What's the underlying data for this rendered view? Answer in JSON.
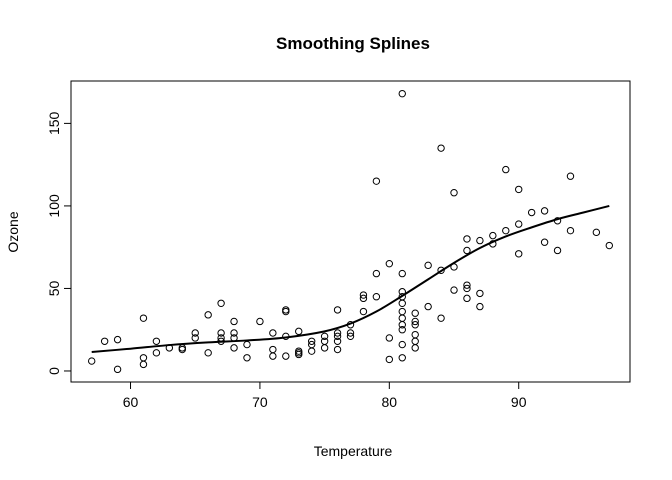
{
  "chart_data": {
    "type": "scatter",
    "title": "Smoothing Splines",
    "xlabel": "Temperature",
    "ylabel": "Ozone",
    "xlim": [
      55.4,
      98.6
    ],
    "ylim": [
      -6.68,
      175.68
    ],
    "xticks": [
      60,
      70,
      80,
      90
    ],
    "yticks": [
      0,
      50,
      100,
      150
    ],
    "grid": false,
    "legend": "none",
    "points": [
      [
        57,
        6
      ],
      [
        58,
        18
      ],
      [
        59,
        1
      ],
      [
        59,
        19
      ],
      [
        61,
        32
      ],
      [
        61,
        8
      ],
      [
        61,
        4
      ],
      [
        62,
        11
      ],
      [
        62,
        18
      ],
      [
        63,
        14
      ],
      [
        64,
        14
      ],
      [
        64,
        13
      ],
      [
        65,
        23
      ],
      [
        65,
        20
      ],
      [
        66,
        34
      ],
      [
        66,
        11
      ],
      [
        67,
        41
      ],
      [
        67,
        23
      ],
      [
        67,
        18
      ],
      [
        67,
        20
      ],
      [
        68,
        30
      ],
      [
        68,
        23
      ],
      [
        68,
        20
      ],
      [
        68,
        14
      ],
      [
        69,
        16
      ],
      [
        69,
        8
      ],
      [
        70,
        30
      ],
      [
        71,
        23
      ],
      [
        71,
        13
      ],
      [
        71,
        9
      ],
      [
        72,
        37
      ],
      [
        72,
        36
      ],
      [
        72,
        21
      ],
      [
        72,
        9
      ],
      [
        73,
        24
      ],
      [
        73,
        12
      ],
      [
        73,
        11
      ],
      [
        73,
        10
      ],
      [
        74,
        18
      ],
      [
        74,
        16
      ],
      [
        74,
        12
      ],
      [
        75,
        14
      ],
      [
        75,
        21
      ],
      [
        75,
        18
      ],
      [
        76,
        37
      ],
      [
        76,
        23
      ],
      [
        76,
        21
      ],
      [
        76,
        18
      ],
      [
        76,
        13
      ],
      [
        77,
        21
      ],
      [
        77,
        23
      ],
      [
        77,
        28
      ],
      [
        78,
        46
      ],
      [
        78,
        44
      ],
      [
        78,
        36
      ],
      [
        79,
        115
      ],
      [
        79,
        59
      ],
      [
        79,
        45
      ],
      [
        80,
        65
      ],
      [
        80,
        20
      ],
      [
        80,
        7
      ],
      [
        81,
        168
      ],
      [
        81,
        59
      ],
      [
        81,
        48
      ],
      [
        81,
        45
      ],
      [
        81,
        41
      ],
      [
        81,
        36
      ],
      [
        81,
        32
      ],
      [
        81,
        28
      ],
      [
        81,
        25
      ],
      [
        81,
        16
      ],
      [
        81,
        8
      ],
      [
        82,
        30
      ],
      [
        82,
        28
      ],
      [
        82,
        22
      ],
      [
        82,
        18
      ],
      [
        82,
        14
      ],
      [
        82,
        35
      ],
      [
        83,
        64
      ],
      [
        83,
        39
      ],
      [
        84,
        135
      ],
      [
        84,
        61
      ],
      [
        84,
        32
      ],
      [
        85,
        108
      ],
      [
        85,
        63
      ],
      [
        85,
        49
      ],
      [
        86,
        80
      ],
      [
        86,
        73
      ],
      [
        86,
        52
      ],
      [
        86,
        50
      ],
      [
        86,
        44
      ],
      [
        87,
        79
      ],
      [
        87,
        47
      ],
      [
        87,
        39
      ],
      [
        88,
        82
      ],
      [
        88,
        77
      ],
      [
        89,
        122
      ],
      [
        89,
        85
      ],
      [
        90,
        110
      ],
      [
        90,
        89
      ],
      [
        90,
        71
      ],
      [
        91,
        96
      ],
      [
        92,
        97
      ],
      [
        92,
        78
      ],
      [
        93,
        91
      ],
      [
        93,
        73
      ],
      [
        94,
        118
      ],
      [
        94,
        85
      ],
      [
        96,
        84
      ],
      [
        97,
        76
      ]
    ],
    "spline": [
      [
        57,
        11.5
      ],
      [
        60,
        13.5
      ],
      [
        63,
        15.7
      ],
      [
        66,
        17.3
      ],
      [
        69,
        18.5
      ],
      [
        72,
        20.3
      ],
      [
        75,
        24
      ],
      [
        77,
        28.7
      ],
      [
        79,
        36
      ],
      [
        81,
        45.5
      ],
      [
        83,
        55.5
      ],
      [
        85,
        65.5
      ],
      [
        87,
        74.5
      ],
      [
        89,
        81.5
      ],
      [
        91,
        87
      ],
      [
        93,
        92
      ],
      [
        95,
        96
      ],
      [
        97,
        100
      ]
    ]
  }
}
